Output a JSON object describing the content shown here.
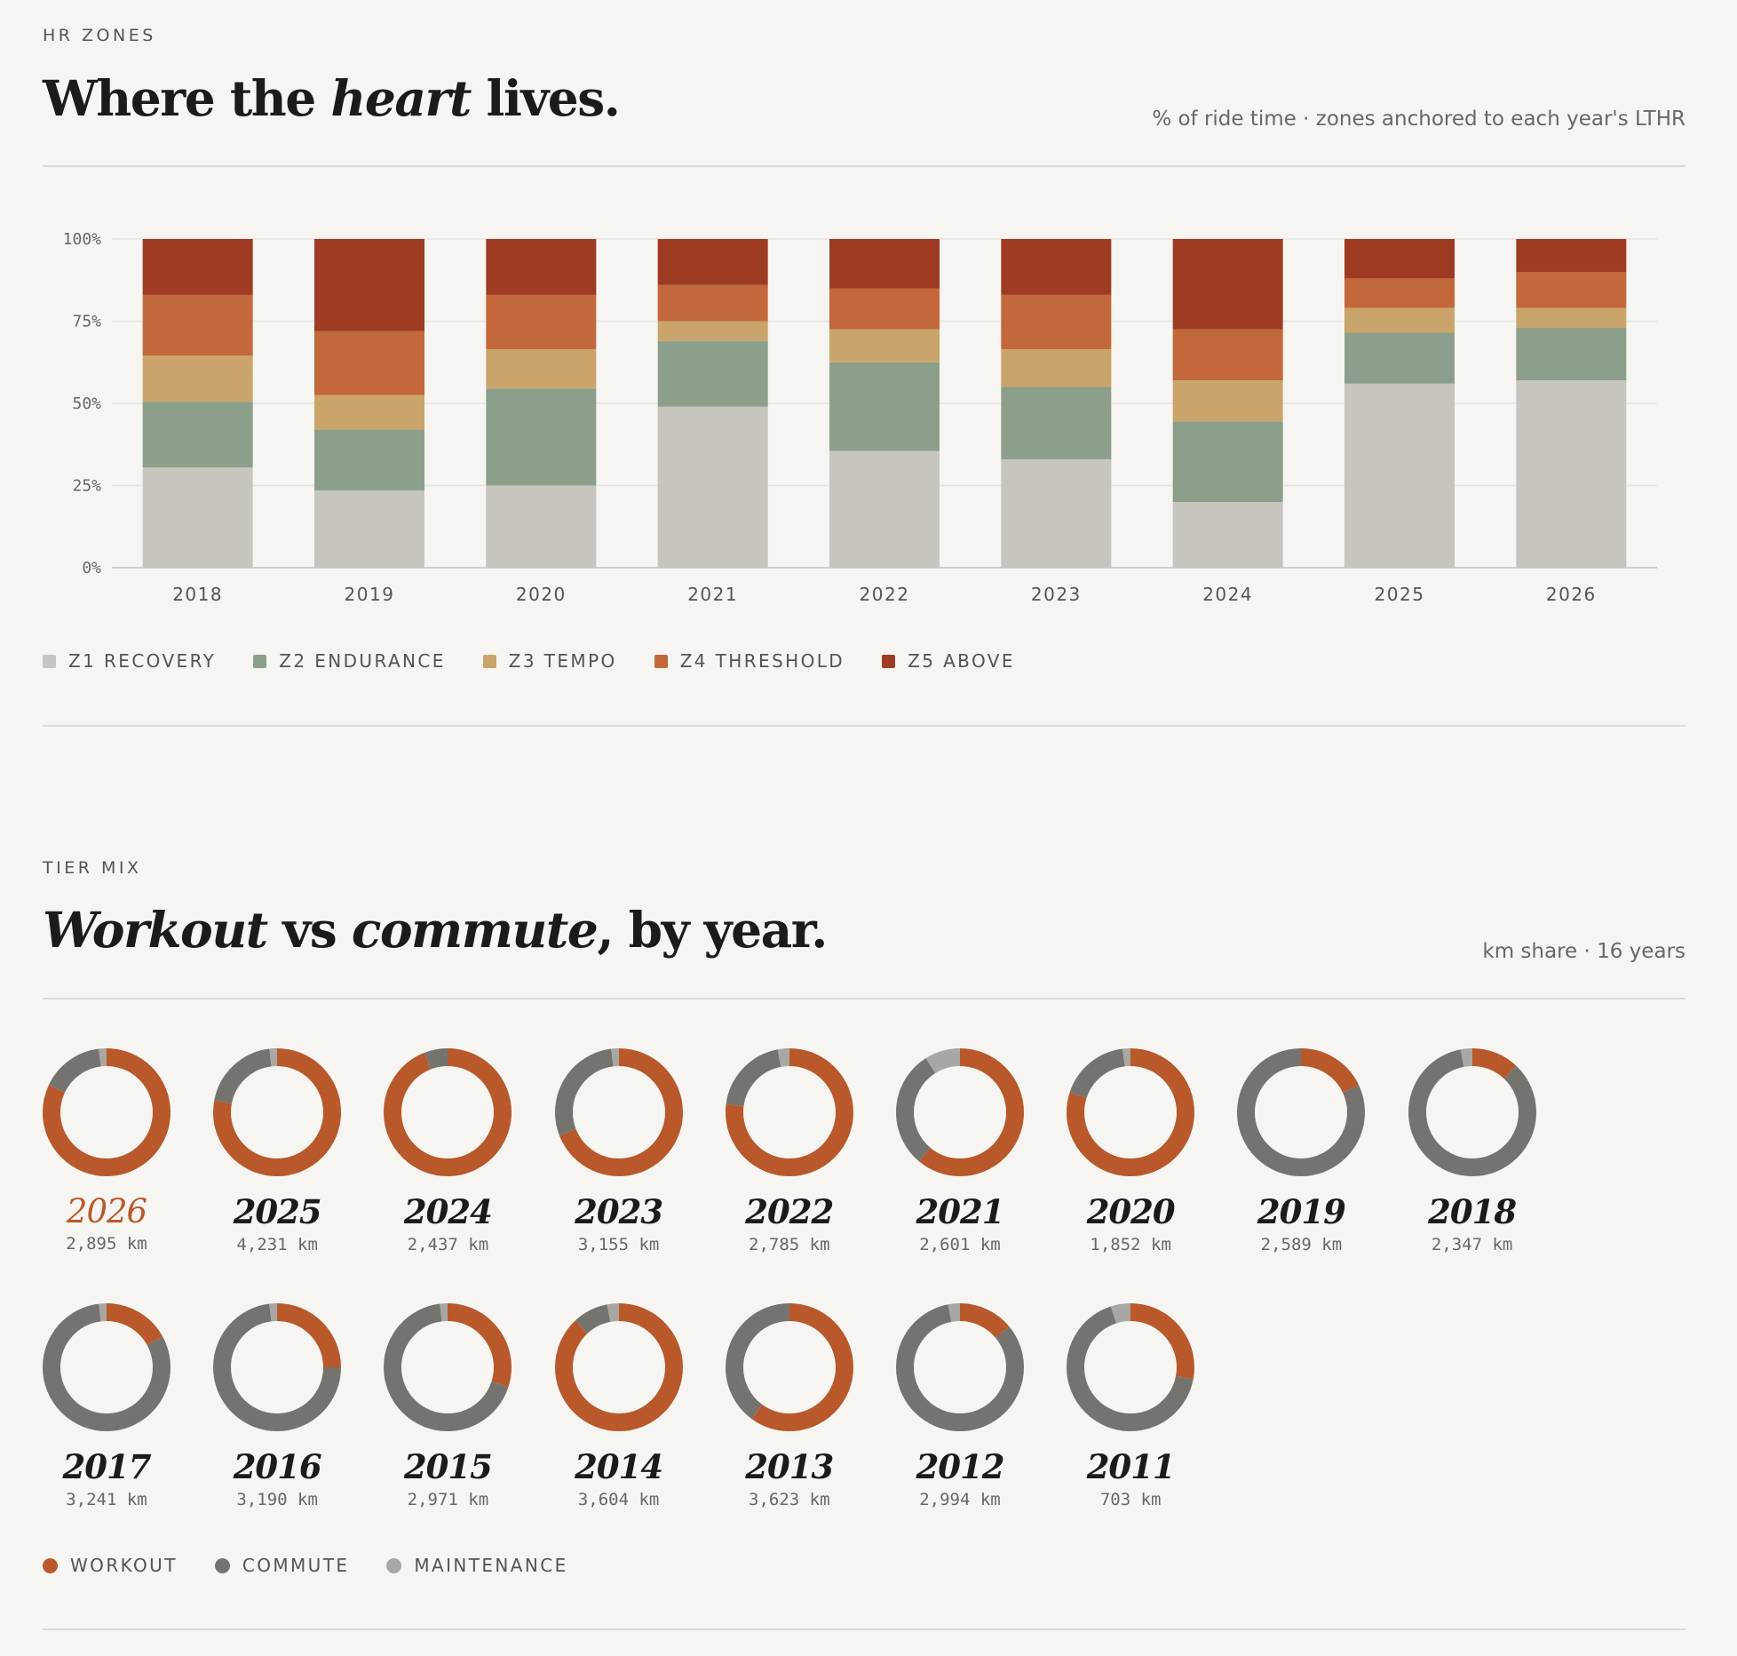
{
  "hr_zones": {
    "eyebrow": "HR ZONES",
    "headline_pre": "Where the ",
    "headline_em": "heart",
    "headline_post": " lives.",
    "subhead": "% of ride time · zones anchored to each year's LTHR",
    "legend": [
      {
        "label": "Z1 RECOVERY",
        "color": "#c8c4be"
      },
      {
        "label": "Z2 ENDURANCE",
        "color": "#8c9f8a"
      },
      {
        "label": "Z3 TEMPO",
        "color": "#caa46a"
      },
      {
        "label": "Z4 THRESHOLD",
        "color": "#c2683a"
      },
      {
        "label": "Z5 ABOVE",
        "color": "#9e3b23"
      }
    ]
  },
  "tier_mix": {
    "eyebrow": "TIER MIX",
    "headline_em1": "Workout",
    "headline_mid": " vs ",
    "headline_em2": "commute",
    "headline_post": ", by year.",
    "subhead": "km share · 16 years",
    "legend": [
      {
        "label": "WORKOUT",
        "color": "#b8582b"
      },
      {
        "label": "COMMUTE",
        "color": "#75736d"
      },
      {
        "label": "MAINTENANCE",
        "color": "#a9a7a2"
      }
    ]
  },
  "chart_data": [
    {
      "type": "bar",
      "stacked": true,
      "title": "Where the heart lives.",
      "ylim": [
        0,
        100
      ],
      "yticks": [
        "0%",
        "25%",
        "50%",
        "75%",
        "100%"
      ],
      "categories": [
        "2018",
        "2019",
        "2020",
        "2021",
        "2022",
        "2023",
        "2024",
        "2025",
        "2026"
      ],
      "series": [
        {
          "name": "Z1 RECOVERY",
          "color": "#c8c4be",
          "values": [
            30.5,
            23.5,
            25,
            49,
            35.5,
            33,
            20,
            56,
            57
          ]
        },
        {
          "name": "Z2 ENDURANCE",
          "color": "#8c9f8a",
          "values": [
            20,
            18.5,
            29.5,
            20,
            27,
            22,
            24.5,
            15.5,
            16
          ]
        },
        {
          "name": "Z3 TEMPO",
          "color": "#caa46a",
          "values": [
            14,
            10.5,
            12,
            6,
            10,
            11.5,
            12.5,
            7.5,
            6
          ]
        },
        {
          "name": "Z4 THRESHOLD",
          "color": "#c2683a",
          "values": [
            18.5,
            19.5,
            16.5,
            11,
            12.5,
            16.5,
            15.5,
            9,
            11
          ]
        },
        {
          "name": "Z5 ABOVE",
          "color": "#9e3b23",
          "values": [
            17,
            28,
            17,
            14,
            15,
            17,
            27.5,
            12,
            10
          ]
        }
      ],
      "grid": true,
      "legend_position": "bottom-left"
    },
    {
      "type": "pie",
      "variant": "donut",
      "title": "Workout vs commute, by year.",
      "series_names": [
        "WORKOUT",
        "COMMUTE",
        "MAINTENANCE"
      ],
      "colors": [
        "#b8582b",
        "#75736d",
        "#a9a7a2"
      ],
      "current_year": "2026",
      "years": [
        {
          "year": "2026",
          "km": "2,895 km",
          "shares": [
            0.82,
            0.16,
            0.02
          ]
        },
        {
          "year": "2025",
          "km": "4,231 km",
          "shares": [
            0.78,
            0.2,
            0.02
          ]
        },
        {
          "year": "2024",
          "km": "2,437 km",
          "shares": [
            0.94,
            0.06,
            0.0
          ]
        },
        {
          "year": "2023",
          "km": "3,155 km",
          "shares": [
            0.69,
            0.29,
            0.02
          ]
        },
        {
          "year": "2022",
          "km": "2,785 km",
          "shares": [
            0.77,
            0.2,
            0.03
          ]
        },
        {
          "year": "2021",
          "km": "2,601 km",
          "shares": [
            0.61,
            0.3,
            0.09
          ]
        },
        {
          "year": "2020",
          "km": "1,852 km",
          "shares": [
            0.8,
            0.18,
            0.02
          ]
        },
        {
          "year": "2019",
          "km": "2,589 km",
          "shares": [
            0.18,
            0.82,
            0.0
          ]
        },
        {
          "year": "2018",
          "km": "2,347 km",
          "shares": [
            0.12,
            0.85,
            0.03
          ]
        },
        {
          "year": "2017",
          "km": "3,241 km",
          "shares": [
            0.17,
            0.81,
            0.02
          ]
        },
        {
          "year": "2016",
          "km": "3,190 km",
          "shares": [
            0.25,
            0.73,
            0.02
          ]
        },
        {
          "year": "2015",
          "km": "2,971 km",
          "shares": [
            0.3,
            0.68,
            0.02
          ]
        },
        {
          "year": "2014",
          "km": "3,604 km",
          "shares": [
            0.88,
            0.09,
            0.03
          ]
        },
        {
          "year": "2013",
          "km": "3,623 km",
          "shares": [
            0.6,
            0.4,
            0.0
          ]
        },
        {
          "year": "2012",
          "km": "2,994 km",
          "shares": [
            0.14,
            0.83,
            0.03
          ]
        },
        {
          "year": "2011",
          "km": "703 km",
          "shares": [
            0.28,
            0.67,
            0.05
          ]
        }
      ],
      "legend_position": "bottom-left"
    }
  ]
}
